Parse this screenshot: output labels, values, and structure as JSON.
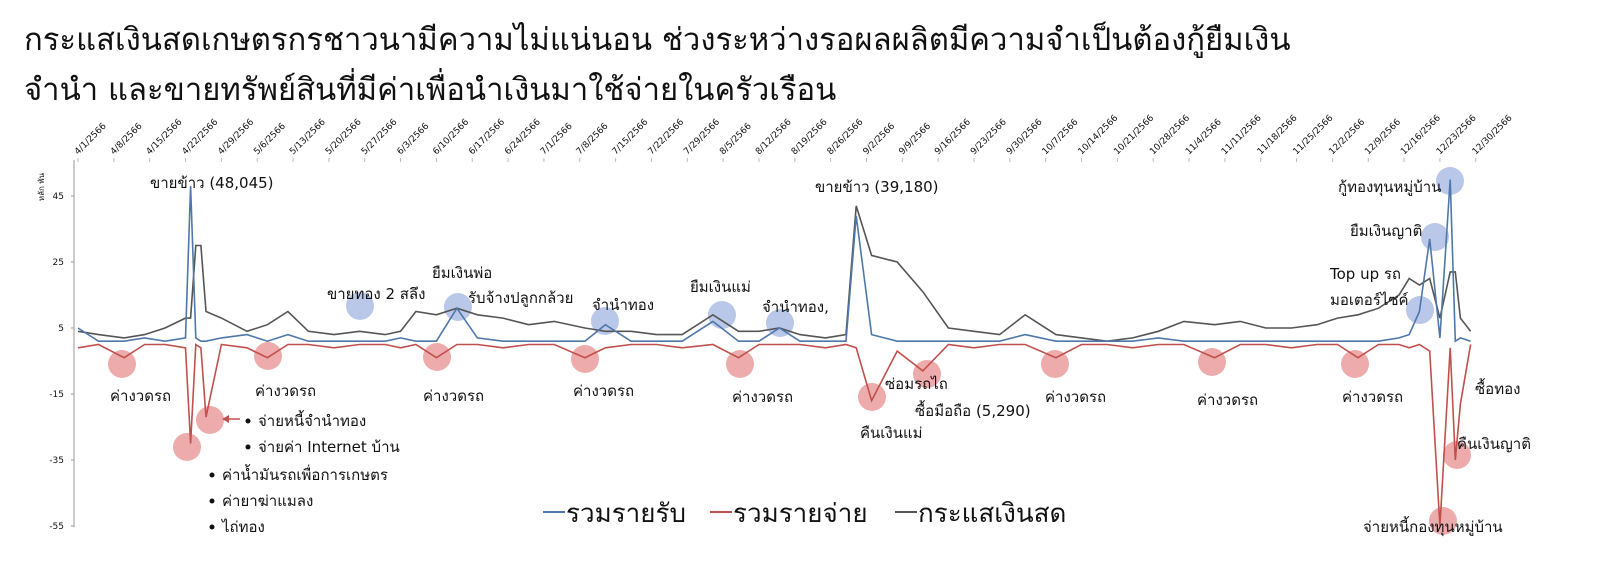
{
  "chart_data": {
    "type": "line",
    "title": [
      "กระแสเงินสดเกษตรกรชาวนามีความไม่แน่นอน ช่วงระหว่างรอผลผลิตมีความจำเป็นต้องกู้ยืมเงิน",
      "จำนำ และขายทรัพย์สินที่มีค่าเพื่อนำเงินมาใช้จ่ายในครัวเรือน"
    ],
    "y_label": "หลัก พัน",
    "x": [
      "4/1/2566",
      "4/5/2566",
      "4/10/2566",
      "4/14/2566",
      "4/18/2566",
      "4/22/2566",
      "4/23/2566",
      "4/24/2566",
      "4/25/2566",
      "4/26/2566",
      "4/29/2566",
      "5/4/2566",
      "5/8/2566",
      "5/12/2566",
      "5/16/2566",
      "5/21/2566",
      "5/26/2566",
      "5/31/2566",
      "6/3/2566",
      "6/6/2566",
      "6/10/2566",
      "6/14/2566",
      "6/18/2566",
      "6/23/2566",
      "6/28/2566",
      "7/3/2566",
      "7/9/2566",
      "7/13/2566",
      "7/18/2566",
      "7/23/2566",
      "7/28/2566",
      "8/3/2566",
      "8/8/2566",
      "8/12/2566",
      "8/16/2566",
      "8/20/2566",
      "8/25/2566",
      "8/29/2566",
      "8/31/2566",
      "9/3/2566",
      "9/8/2566",
      "9/13/2566",
      "9/18/2566",
      "9/23/2566",
      "9/28/2566",
      "10/3/2566",
      "10/9/2566",
      "10/14/2566",
      "10/19/2566",
      "10/24/2566",
      "10/29/2566",
      "11/3/2566",
      "11/9/2566",
      "11/14/2566",
      "11/19/2566",
      "11/24/2566",
      "11/29/2566",
      "12/3/2566",
      "12/7/2566",
      "12/11/2566",
      "12/15/2566",
      "12/17/2566",
      "12/19/2566",
      "12/21/2566",
      "12/23/2566",
      "12/25/2566",
      "12/26/2566",
      "12/27/2566",
      "12/29/2566"
    ],
    "series": [
      {
        "name": "รวมรายรับ",
        "color": "#4f77aa",
        "values": [
          5,
          1,
          1,
          2,
          1,
          2,
          48,
          2,
          1,
          1,
          2,
          3,
          1,
          3,
          1,
          1,
          1,
          1,
          2,
          1,
          1,
          11,
          2,
          1,
          1,
          1,
          1,
          6,
          1,
          1,
          1,
          7,
          1,
          1,
          5,
          1,
          1,
          1,
          39,
          3,
          1,
          1,
          1,
          1,
          1,
          3,
          1,
          1,
          1,
          1,
          2,
          1,
          1,
          1,
          1,
          1,
          1,
          1,
          1,
          1,
          2,
          3,
          10,
          32,
          2,
          50,
          1,
          2,
          1
        ]
      },
      {
        "name": "รวมรายจ่าย",
        "color": "#c0504d",
        "values": [
          -1,
          0,
          -4,
          0,
          0,
          -1,
          -30,
          0,
          -1,
          -22,
          0,
          -1,
          -4,
          0,
          0,
          -1,
          0,
          0,
          -1,
          0,
          -4,
          0,
          0,
          -1,
          0,
          0,
          -4,
          -1,
          0,
          0,
          -1,
          0,
          -4,
          0,
          0,
          0,
          -1,
          0,
          -1,
          -17,
          -2,
          -8,
          0,
          -1,
          0,
          0,
          -4,
          0,
          0,
          -1,
          0,
          0,
          -4,
          0,
          0,
          -1,
          0,
          0,
          -4,
          0,
          0,
          -1,
          0,
          -2,
          -55,
          -1,
          -35,
          -18,
          0
        ]
      },
      {
        "name": "กระแสเงินสด",
        "color": "#555555",
        "values": [
          4,
          3,
          2,
          3,
          5,
          8,
          8,
          30,
          30,
          10,
          8,
          4,
          6,
          10,
          4,
          3,
          4,
          3,
          4,
          10,
          9,
          11,
          9,
          8,
          6,
          7,
          5,
          4,
          4,
          3,
          3,
          9,
          4,
          4,
          5,
          3,
          2,
          3,
          42,
          27,
          25,
          16,
          5,
          4,
          3,
          9,
          3,
          2,
          1,
          2,
          4,
          7,
          6,
          7,
          5,
          5,
          6,
          8,
          9,
          11,
          15,
          20,
          18,
          20,
          8,
          22,
          22,
          8,
          4
        ]
      }
    ],
    "ylim": [
      -55,
      55
    ],
    "yticks": [
      45,
      25,
      5,
      -15,
      -35,
      -55
    ],
    "xticks": [
      "4/1/2566",
      "4/8/2566",
      "4/15/2566",
      "4/22/2566",
      "4/29/2566",
      "5/6/2566",
      "5/13/2566",
      "5/20/2566",
      "5/27/2566",
      "6/3/2566",
      "6/10/2566",
      "6/17/2566",
      "6/24/2566",
      "7/1/2566",
      "7/8/2566",
      "7/15/2566",
      "7/22/2566",
      "7/29/2566",
      "8/5/2566",
      "8/12/2566",
      "8/19/2566",
      "8/26/2566",
      "9/2/2566",
      "9/9/2566",
      "9/16/2566",
      "9/23/2566",
      "9/30/2566",
      "10/7/2566",
      "10/14/2566",
      "10/21/2566",
      "10/28/2566",
      "11/4/2566",
      "11/11/2566",
      "11/18/2566",
      "11/25/2566",
      "12/2/2566",
      "12/9/2566",
      "12/16/2566",
      "12/23/2566",
      "12/30/2566"
    ],
    "annotations": [
      "ขายข้าว (48,045)",
      "ขายข้าว (39,180)",
      "กู้ทองทุนหมู่บ้าน",
      "ยืมเงินญาติ",
      "Top up รถ",
      "มอเตอร์ไซค์",
      "ขายทอง 2 สลึง",
      "ยืมเงินพ่อ",
      "รับจ้างปลูกกล้วย",
      "จำนำทอง",
      "ยืมเงินแม่",
      "จำนำทอง,",
      "ค่างวดรถ",
      "ค่างวดรถ",
      "ค่างวดรถ",
      "ค่างวดรถ",
      "ค่างวดรถ",
      "ค่างวดรถ",
      "ค่างวดรถ",
      "ค่างวดรถ",
      "ซ่อมรถไถ",
      "ซื้อมือถือ (5,290)",
      "คืนเงินแม่",
      "ซื้อทอง",
      "คืนเงินญาติ",
      "จ่ายหนี้กองทุนหมู่บ้าน",
      "จ่ายหนี้จำนำทอง",
      "จ่ายค่า Internet บ้าน",
      "ค่าน้ำมันรถเพื่อการเกษตร",
      "ค่ายาฆ่าแมลง",
      "ไถ่ทอง"
    ]
  }
}
